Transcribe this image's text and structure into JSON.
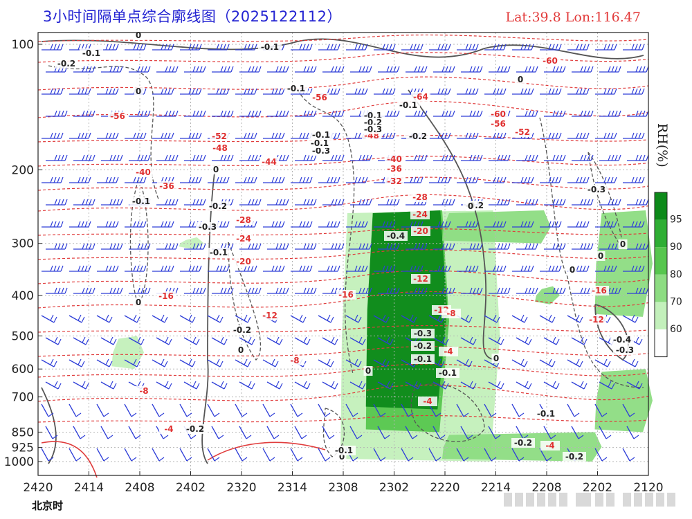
{
  "header": {
    "title": "3小时间隔单点综合廓线图（2025122112）",
    "coords": "Lat:39.8  Lon:116.47"
  },
  "xaxis_unit": "北京时",
  "legend": {
    "title": "RH(%)",
    "ticks": [
      "95",
      "90",
      "80",
      "70",
      "60"
    ],
    "colors": [
      "#0d8a1a",
      "#2fae34",
      "#57c64e",
      "#8ddc82",
      "#c3f0bb",
      "#ffffff"
    ]
  },
  "chart_data": {
    "type": "heatmap",
    "title": "3小时间隔单点综合廓线图（2025122112）",
    "y_axis": {
      "label": "",
      "scale": "pressure (reversed, log)",
      "ticks": [
        100,
        200,
        300,
        400,
        500,
        600,
        700,
        850,
        925,
        1000
      ],
      "range": [
        1000,
        100
      ]
    },
    "x_axis": {
      "label": "北京时",
      "ticks": [
        "2420",
        "2414",
        "2408",
        "2402",
        "2320",
        "2314",
        "2308",
        "2302",
        "2220",
        "2214",
        "2208",
        "2202",
        "2120"
      ]
    },
    "grid": true,
    "legend_placement": "right",
    "rh_fill": {
      "levels": [
        60,
        70,
        80,
        90,
        95
      ],
      "regions": [
        {
          "level": 60,
          "x": [
            "2308",
            "2214"
          ],
          "p": [
            1000,
            250
          ]
        },
        {
          "level": 80,
          "x": [
            "2305",
            "2220"
          ],
          "p": [
            850,
            250
          ]
        },
        {
          "level": 95,
          "x": [
            "2305",
            "2223"
          ],
          "p": [
            750,
            250
          ]
        },
        {
          "level": 70,
          "x": [
            "2220",
            "2208"
          ],
          "p": [
            300,
            250
          ]
        },
        {
          "level": 70,
          "x": [
            "2208",
            "2208"
          ],
          "p": [
            420,
            380
          ]
        },
        {
          "level": 70,
          "x": [
            "2202",
            "2120"
          ],
          "p": [
            450,
            250
          ]
        },
        {
          "level": 70,
          "x": [
            "2202",
            "2120"
          ],
          "p": [
            850,
            600
          ]
        },
        {
          "level": 70,
          "x": [
            "2220",
            "2202"
          ],
          "p": [
            1000,
            850
          ]
        },
        {
          "level": 60,
          "x": [
            "2411",
            "2408"
          ],
          "p": [
            600,
            500
          ]
        },
        {
          "level": 60,
          "x": [
            "2402",
            "2402"
          ],
          "p": [
            310,
            290
          ]
        }
      ]
    },
    "temperature_labels": [
      "-64",
      "-60",
      "-56",
      "-56",
      "-60",
      "-56",
      "-52",
      "-52",
      "-48",
      "-48",
      "-44",
      "-40",
      "-40",
      "-36",
      "-36",
      "-32",
      "-28",
      "-28",
      "-24",
      "-24",
      "-20",
      "-20",
      "-16",
      "-16",
      "-16",
      "-12",
      "-12",
      "-12",
      "-12",
      "-8",
      "-8",
      "-8",
      "-4",
      "-4",
      "-4",
      "-4"
    ],
    "vertical_velocity_labels": [
      "0",
      "-0.1",
      "-0.2",
      "-0.1",
      "0",
      "-0.1",
      "0",
      "-0.1",
      "-0.2",
      "-0.3",
      "-0.1",
      "-0.2",
      "-0.3",
      "-0.1",
      "-0.3",
      "-0.2",
      "-0.1",
      "0",
      "-0.1",
      "0",
      "-0.1",
      "-0.2",
      "-0.3",
      "0",
      "-0.4",
      "0",
      "-0.3",
      "-0.2",
      "-0.1",
      "-0.1",
      "0",
      "-0.2",
      "0",
      "-0.2",
      "0",
      "-0.1",
      "-0.1",
      "-0.2",
      "-0.4",
      "-0.3",
      "-0.2",
      "0",
      "0",
      "0"
    ]
  }
}
